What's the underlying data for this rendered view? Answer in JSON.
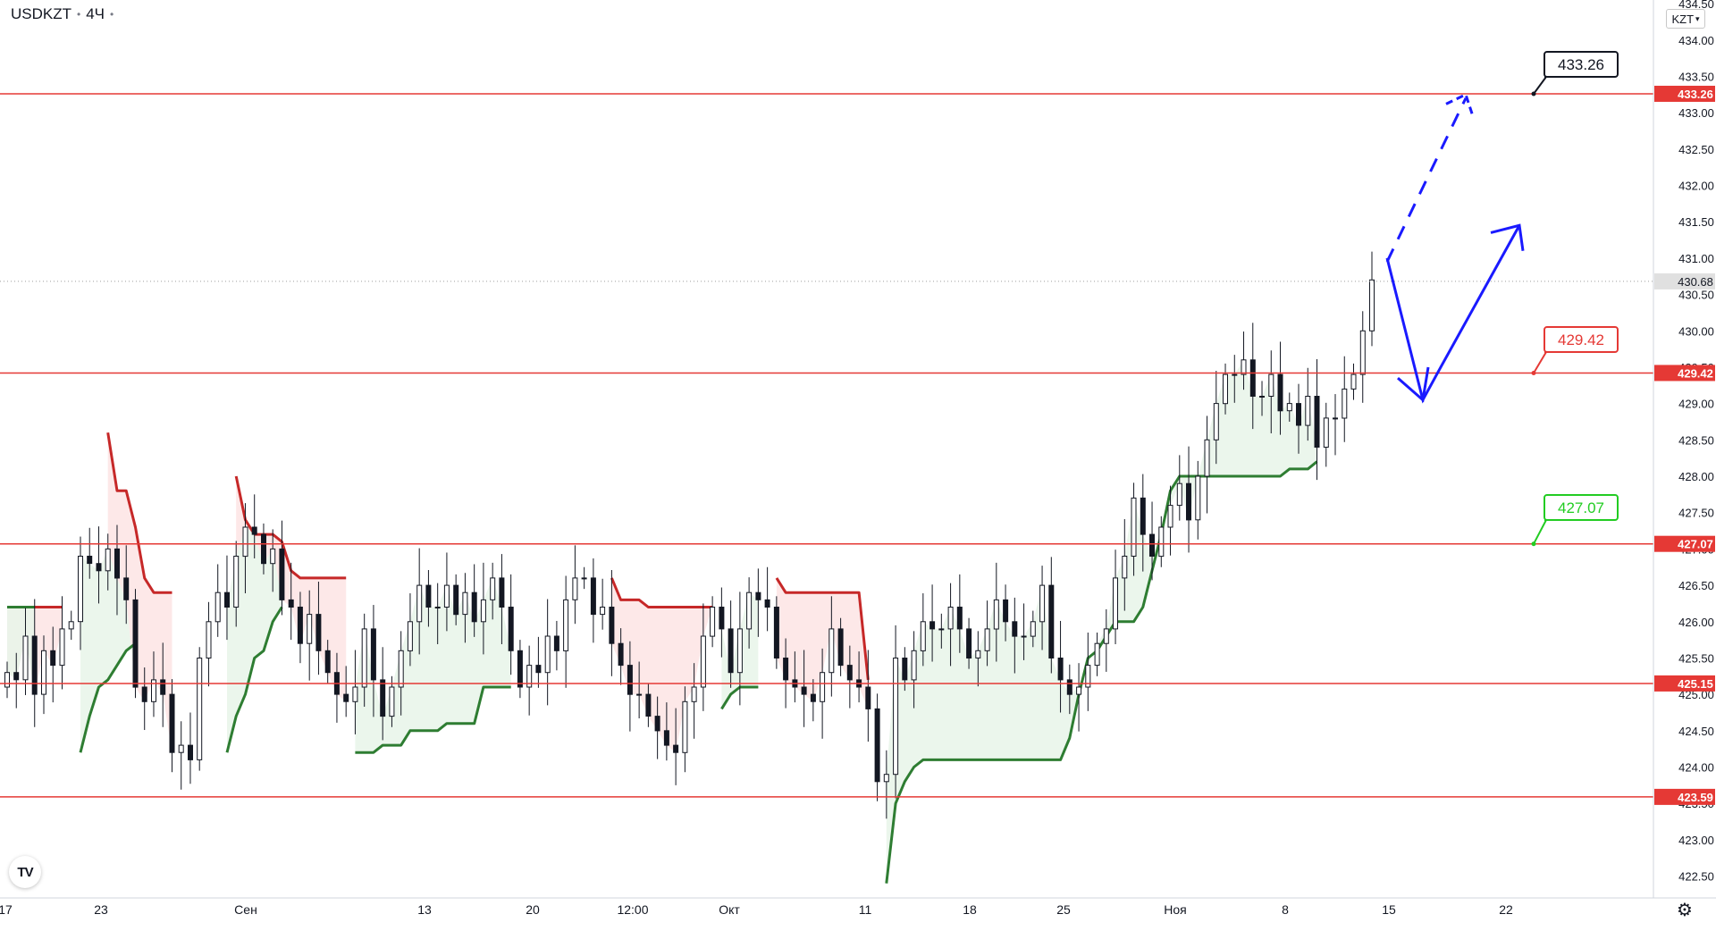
{
  "header": {
    "symbol": "USDKZT",
    "interval": "4Ч"
  },
  "currency_selector": {
    "label": "KZT",
    "arrow": "chevron-down-icon"
  },
  "logo": {
    "icon": "tradingview-logo-icon",
    "text": "TV"
  },
  "settings": {
    "icon": "gear-icon"
  },
  "colors": {
    "up": "#2e7d32",
    "down": "#c62828",
    "level": "#e53935",
    "arrow": "#1a1aff",
    "candle": "#131722",
    "fill_up": "#e8f5e9",
    "fill_down": "#fde4e4",
    "label_red": "#e53935",
    "label_green": "#22cc22",
    "label_black": "#131722"
  },
  "chart_data": {
    "type": "candlestick",
    "ylim": [
      422.2,
      434.55
    ],
    "y_ticks": [
      434.5,
      434.0,
      433.5,
      433.0,
      432.5,
      432.0,
      431.5,
      431.0,
      430.5,
      430.0,
      429.5,
      429.0,
      428.5,
      428.0,
      427.5,
      427.0,
      426.5,
      426.0,
      425.5,
      425.0,
      424.5,
      424.0,
      423.5,
      423.0,
      422.5
    ],
    "x_ticks": [
      "17",
      "23",
      "Сен",
      "13",
      "20",
      "12:00",
      "Окт",
      "11",
      "18",
      "25",
      "Ноя",
      "8",
      "15",
      "22"
    ],
    "current_price": 430.68,
    "levels": [
      433.26,
      429.42,
      427.07,
      425.15,
      423.59
    ],
    "callouts": [
      {
        "text": "433.26",
        "value": 433.26,
        "style": "black"
      },
      {
        "text": "429.42",
        "value": 429.42,
        "style": "red"
      },
      {
        "text": "427.07",
        "value": 427.07,
        "style": "green"
      }
    ],
    "close": [
      425.3,
      425.2,
      425.8,
      425.0,
      425.6,
      425.4,
      425.9,
      426.0,
      426.9,
      426.8,
      426.7,
      427.0,
      426.6,
      426.3,
      425.1,
      424.9,
      425.2,
      425.0,
      424.2,
      424.3,
      424.1,
      425.5,
      426.0,
      426.4,
      426.2,
      426.9,
      427.3,
      427.2,
      426.8,
      427.0,
      426.3,
      426.2,
      425.7,
      426.1,
      425.6,
      425.3,
      425.0,
      424.9,
      425.1,
      425.9,
      425.2,
      424.7,
      425.1,
      425.6,
      426.0,
      426.5,
      426.2,
      426.2,
      426.5,
      426.1,
      426.4,
      426.0,
      426.3,
      426.6,
      426.2,
      425.6,
      425.1,
      425.4,
      425.3,
      425.8,
      425.6,
      426.3,
      426.6,
      426.6,
      426.1,
      426.2,
      425.7,
      425.4,
      425.0,
      425.0,
      424.7,
      424.5,
      424.3,
      424.2,
      424.9,
      425.1,
      425.8,
      426.2,
      425.9,
      425.3,
      425.9,
      426.4,
      426.3,
      426.2,
      425.5,
      425.2,
      425.1,
      425.0,
      424.9,
      425.3,
      425.9,
      425.4,
      425.2,
      425.1,
      424.8,
      423.8,
      423.9,
      425.5,
      425.2,
      425.6,
      426.0,
      425.9,
      425.9,
      426.2,
      425.9,
      425.5,
      425.6,
      425.9,
      426.3,
      426.0,
      425.8,
      425.8,
      426.0,
      426.5,
      425.5,
      425.2,
      425.0,
      425.1,
      425.4,
      425.7,
      425.9,
      426.6,
      426.9,
      427.7,
      427.2,
      426.9,
      427.3,
      427.6,
      427.9,
      427.4,
      428.0,
      428.5,
      429.0,
      429.4,
      429.4,
      429.6,
      429.1,
      429.1,
      429.4,
      428.9,
      429.0,
      428.7,
      429.1,
      428.4,
      428.8,
      428.8,
      429.2,
      429.4,
      430.0,
      430.7
    ],
    "supertrend_up": [
      {
        "from": 426.2,
        "to": 426.2,
        "x0": 11,
        "x1": 14
      },
      {
        "value_series": "green_a",
        "values": [
          424.2,
          424.7,
          425.1,
          425.2,
          425.4,
          425.6,
          425.7
        ]
      },
      {
        "value_series": "green_b",
        "values": [
          424.2,
          424.7,
          425.0,
          425.5,
          425.6,
          426.0,
          426.2
        ]
      },
      {
        "value_series": "green_c",
        "values": [
          424.2,
          424.2,
          424.3,
          424.3,
          424.5,
          424.5,
          424.6,
          425.1,
          425.1
        ]
      },
      {
        "value_series": "green_d",
        "values": [
          424.8,
          425.0,
          425.1,
          425.1
        ]
      },
      {
        "value_series": "green_e",
        "values": [
          422.4,
          423.5,
          423.8,
          424.0,
          424.1,
          424.1,
          424.1,
          424.1,
          424.4,
          425.0,
          425.5,
          425.6,
          425.8,
          426.0,
          426.0,
          426.2,
          426.7,
          427.2,
          427.8,
          428.0,
          428.0,
          428.0,
          428.0,
          428.0,
          428.1,
          428.2
        ]
      }
    ],
    "supertrend_down": [
      {
        "value_series": "red_a",
        "values": [
          426.2,
          426.2,
          426.2
        ]
      },
      {
        "value_series": "red_b",
        "values": [
          428.6,
          427.8,
          427.3,
          426.4,
          426.4
        ]
      },
      {
        "value_series": "red_c",
        "values": [
          428.0,
          427.4,
          427.2,
          427.2,
          427.1,
          426.7,
          426.6,
          426.6,
          426.6
        ]
      },
      {
        "value_series": "red_d",
        "values": [
          426.6,
          426.3,
          426.3,
          426.3,
          426.2,
          426.2
        ]
      },
      {
        "value_series": "red_e",
        "values": [
          426.6,
          426.4,
          426.4,
          426.4,
          426.4,
          425.2
        ]
      }
    ],
    "arrows": {
      "solid": [
        [
          431.0,
          429.1
        ],
        [
          429.1,
          429.5
        ],
        [
          429.5,
          431.5
        ]
      ],
      "dashed": [
        [
          430.9,
          433.25
        ]
      ]
    }
  }
}
